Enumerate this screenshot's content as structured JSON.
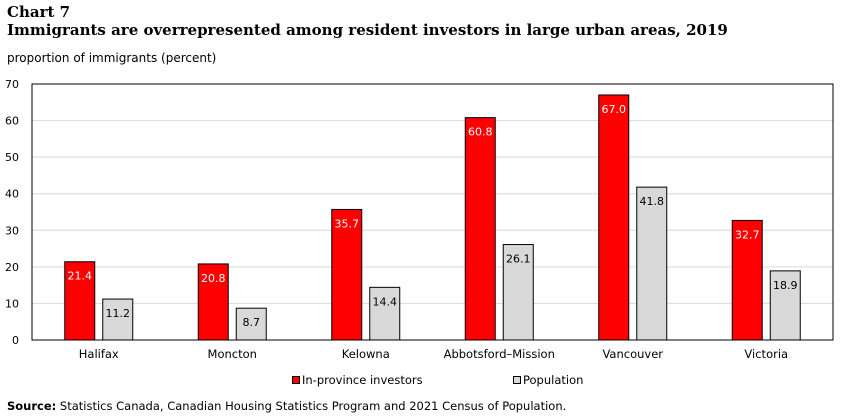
{
  "header": {
    "chart_label": "Chart 7",
    "title": "Immigrants are overrepresented among resident investors in large urban areas, 2019",
    "y_unit": "proportion of immigrants (percent)"
  },
  "footer": {
    "source_label": "Source:",
    "source_text": "Statistics Canada, Canadian Housing Statistics Program and 2021 Census of Population."
  },
  "chart_data": {
    "type": "bar",
    "title": "Immigrants are overrepresented among resident investors in large urban areas, 2019",
    "xlabel": "",
    "ylabel": "proportion of immigrants (percent)",
    "ylim": [
      0,
      70
    ],
    "yticks": [
      0,
      10,
      20,
      30,
      40,
      50,
      60,
      70
    ],
    "grid": true,
    "legend_position": "bottom",
    "categories": [
      "Halifax",
      "Moncton",
      "Kelowna",
      "Abbotsford–Mission",
      "Vancouver",
      "Victoria"
    ],
    "series": [
      {
        "name": "In-province investors",
        "color": "#ff0000",
        "label_color": "#ffffff",
        "values": [
          21.4,
          20.8,
          35.7,
          60.8,
          67.0,
          32.7
        ]
      },
      {
        "name": "Population",
        "color": "#d9d9d9",
        "label_color": "#000000",
        "values": [
          11.2,
          8.7,
          14.4,
          26.1,
          41.8,
          18.9
        ]
      }
    ]
  }
}
